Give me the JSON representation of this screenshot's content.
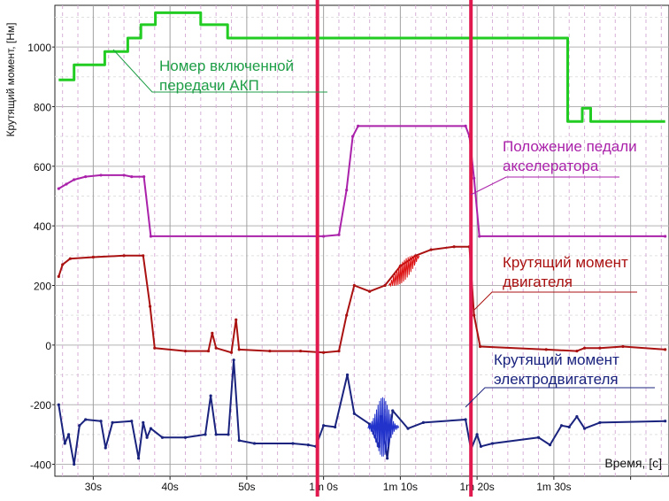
{
  "chart_data": {
    "type": "line",
    "title": "",
    "ylabel": "Крутящий момент, [Нм]",
    "xlabel": "Время, [с]",
    "ylim": [
      -440,
      1140
    ],
    "xlim": [
      24,
      104
    ],
    "y_ticks": [
      -400,
      -200,
      0,
      200,
      400,
      600,
      800,
      1000
    ],
    "y_tick_labels": [
      "-400",
      "-200",
      "0",
      "200",
      "400",
      "600",
      "800",
      "1000"
    ],
    "x_ticks": [
      29,
      39,
      49,
      59,
      69,
      79,
      89,
      99
    ],
    "x_tick_labels": [
      "30s",
      "40s",
      "50s",
      "1m 0s",
      "1m 10s",
      "1m 20s",
      "1m 30s",
      ""
    ],
    "grid": true,
    "markers": [
      {
        "x": 58.2,
        "label": ""
      },
      {
        "x": 78.2,
        "label": ""
      }
    ],
    "series": [
      {
        "name": "Номер включенной передачи АКП",
        "color": "#22cc22",
        "points": [
          [
            24.5,
            890
          ],
          [
            26.5,
            890
          ],
          [
            26.5,
            940
          ],
          [
            30.5,
            940
          ],
          [
            30.5,
            985
          ],
          [
            33.5,
            985
          ],
          [
            33.5,
            1030
          ],
          [
            35.2,
            1030
          ],
          [
            35.2,
            1075
          ],
          [
            37.1,
            1075
          ],
          [
            37.1,
            1115
          ],
          [
            43,
            1115
          ],
          [
            43,
            1075
          ],
          [
            46.5,
            1075
          ],
          [
            46.5,
            1030
          ],
          [
            90.8,
            1030
          ],
          [
            90.8,
            750
          ],
          [
            92.7,
            750
          ],
          [
            92.7,
            795
          ],
          [
            93.8,
            795
          ],
          [
            93.8,
            750
          ],
          [
            103.5,
            750
          ]
        ]
      },
      {
        "name": "Положение педали акселератора",
        "color": "#aa22aa",
        "points": [
          [
            24.5,
            525
          ],
          [
            25.5,
            540
          ],
          [
            26.5,
            555
          ],
          [
            28,
            565
          ],
          [
            30,
            570
          ],
          [
            33,
            570
          ],
          [
            34,
            565
          ],
          [
            35.6,
            565
          ],
          [
            36.5,
            365
          ],
          [
            59,
            365
          ],
          [
            61,
            370
          ],
          [
            62,
            520
          ],
          [
            62.8,
            700
          ],
          [
            63.5,
            735
          ],
          [
            77.5,
            735
          ],
          [
            78,
            700
          ],
          [
            78.6,
            560
          ],
          [
            79.3,
            365
          ],
          [
            103.5,
            365
          ]
        ]
      },
      {
        "name": "Крутящий момент двигателя",
        "color": "#aa1111",
        "points": [
          [
            24.5,
            230
          ],
          [
            25,
            270
          ],
          [
            26,
            290
          ],
          [
            29,
            295
          ],
          [
            33,
            300
          ],
          [
            35.5,
            300
          ],
          [
            36.4,
            130
          ],
          [
            37,
            -10
          ],
          [
            41,
            -20
          ],
          [
            44,
            -20
          ],
          [
            44.5,
            40
          ],
          [
            45,
            -10
          ],
          [
            47,
            -25
          ],
          [
            47.6,
            85
          ],
          [
            48,
            -15
          ],
          [
            52,
            -20
          ],
          [
            56,
            -20
          ],
          [
            59,
            -25
          ],
          [
            61,
            -20
          ],
          [
            62,
            100
          ],
          [
            63,
            200
          ],
          [
            65,
            180
          ],
          [
            67,
            200
          ],
          [
            69,
            265
          ],
          [
            71,
            300
          ],
          [
            73,
            320
          ],
          [
            76,
            330
          ],
          [
            78,
            330
          ],
          [
            78.6,
            100
          ],
          [
            79.4,
            -5
          ],
          [
            88,
            -15
          ],
          [
            92,
            -20
          ],
          [
            93,
            -10
          ],
          [
            95,
            -10
          ],
          [
            98,
            -5
          ],
          [
            103.5,
            -15
          ]
        ]
      },
      {
        "name": "Крутящий момент электродвигателя",
        "color": "#1a237e",
        "points": [
          [
            24.5,
            -200
          ],
          [
            25.3,
            -330
          ],
          [
            25.8,
            -300
          ],
          [
            26.5,
            -400
          ],
          [
            27.2,
            -270
          ],
          [
            28,
            -250
          ],
          [
            30,
            -255
          ],
          [
            30.6,
            -345
          ],
          [
            31.5,
            -260
          ],
          [
            34,
            -255
          ],
          [
            34.9,
            -380
          ],
          [
            35.5,
            -260
          ],
          [
            36,
            -310
          ],
          [
            36.5,
            -280
          ],
          [
            38,
            -310
          ],
          [
            41,
            -310
          ],
          [
            43.6,
            -300
          ],
          [
            44.3,
            -170
          ],
          [
            45,
            -300
          ],
          [
            46.6,
            -300
          ],
          [
            47.3,
            -50
          ],
          [
            48,
            -320
          ],
          [
            50,
            -330
          ],
          [
            55,
            -330
          ],
          [
            57,
            -335
          ],
          [
            58,
            -340
          ],
          [
            59,
            -270
          ],
          [
            60.5,
            -275
          ],
          [
            62.1,
            -100
          ],
          [
            63,
            -230
          ],
          [
            65,
            -265
          ],
          [
            66.2,
            -340
          ],
          [
            66.5,
            -240
          ],
          [
            67.3,
            -380
          ],
          [
            68,
            -220
          ],
          [
            70,
            -280
          ],
          [
            72,
            -260
          ],
          [
            77.5,
            -250
          ],
          [
            78.2,
            -350
          ],
          [
            79,
            -300
          ],
          [
            79.5,
            -340
          ],
          [
            81,
            -330
          ],
          [
            87,
            -310
          ],
          [
            88.5,
            -335
          ],
          [
            90,
            -270
          ],
          [
            91,
            -275
          ],
          [
            92,
            -240
          ],
          [
            93,
            -280
          ],
          [
            95,
            -260
          ],
          [
            103.5,
            -255
          ]
        ]
      }
    ],
    "annotations": [
      {
        "lines": [
          "Номер включенной",
          "передачи АКП"
        ],
        "color": "#1e9e46"
      },
      {
        "lines": [
          "Положение педали",
          "акселератора"
        ],
        "color": "#aa22aa"
      },
      {
        "lines": [
          "Крутящий момент",
          "двигателя"
        ],
        "color": "#aa1111"
      },
      {
        "lines": [
          "Крутящий момент",
          "электродвигателя"
        ],
        "color": "#1a237e"
      }
    ]
  }
}
